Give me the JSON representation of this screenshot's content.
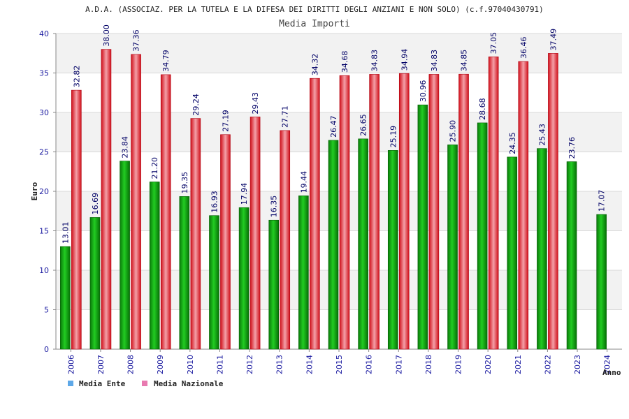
{
  "chart_data": {
    "type": "bar",
    "title": "A.D.A. (ASSOCIAZ. PER LA TUTELA E LA DIFESA DEI DIRITTI DEGLI ANZIANI E NON SOLO) (c.f.97040430791)",
    "subtitle": "Media Importi",
    "ylabel": "Euro",
    "xlabel": "Anno",
    "ylim": [
      0,
      40
    ],
    "yticks": [
      "0",
      "5",
      "10",
      "15",
      "20",
      "25",
      "30",
      "35",
      "40"
    ],
    "grid": true,
    "legend_position": "bottom-left",
    "categories": [
      "2006",
      "2007",
      "2008",
      "2009",
      "2010",
      "2011",
      "2012",
      "2013",
      "2014",
      "2015",
      "2016",
      "2017",
      "2018",
      "2019",
      "2020",
      "2021",
      "2022",
      "2023",
      "2024"
    ],
    "series": [
      {
        "name": "Media Ente",
        "color": "#0a9a0a",
        "legend_color": "#5ea8e8",
        "values": [
          13.01,
          16.69,
          23.84,
          21.2,
          19.35,
          16.93,
          17.94,
          16.35,
          19.44,
          26.47,
          26.65,
          25.19,
          30.96,
          25.9,
          28.68,
          24.35,
          25.43,
          23.76,
          17.07
        ],
        "labels": [
          "13.01",
          "16.69",
          "23.84",
          "21.20",
          "19.35",
          "16.93",
          "17.94",
          "16.35",
          "19.44",
          "26.47",
          "26.65",
          "25.19",
          "30.96",
          "25.90",
          "28.68",
          "24.35",
          "25.43",
          "23.76",
          "17.07"
        ]
      },
      {
        "name": "Media Nazionale",
        "color": "#e8202a",
        "legend_color": "#e87ab0",
        "values": [
          32.82,
          38.0,
          37.36,
          34.79,
          29.24,
          27.19,
          29.43,
          27.71,
          34.32,
          34.68,
          34.83,
          34.94,
          34.83,
          34.85,
          37.05,
          36.46,
          37.49,
          null,
          null
        ],
        "labels": [
          "32.82",
          "38.00",
          "37.36",
          "34.79",
          "29.24",
          "27.19",
          "29.43",
          "27.71",
          "34.32",
          "34.68",
          "34.83",
          "34.94",
          "34.83",
          "34.85",
          "37.05",
          "36.46",
          "37.49",
          "",
          ""
        ]
      }
    ]
  }
}
